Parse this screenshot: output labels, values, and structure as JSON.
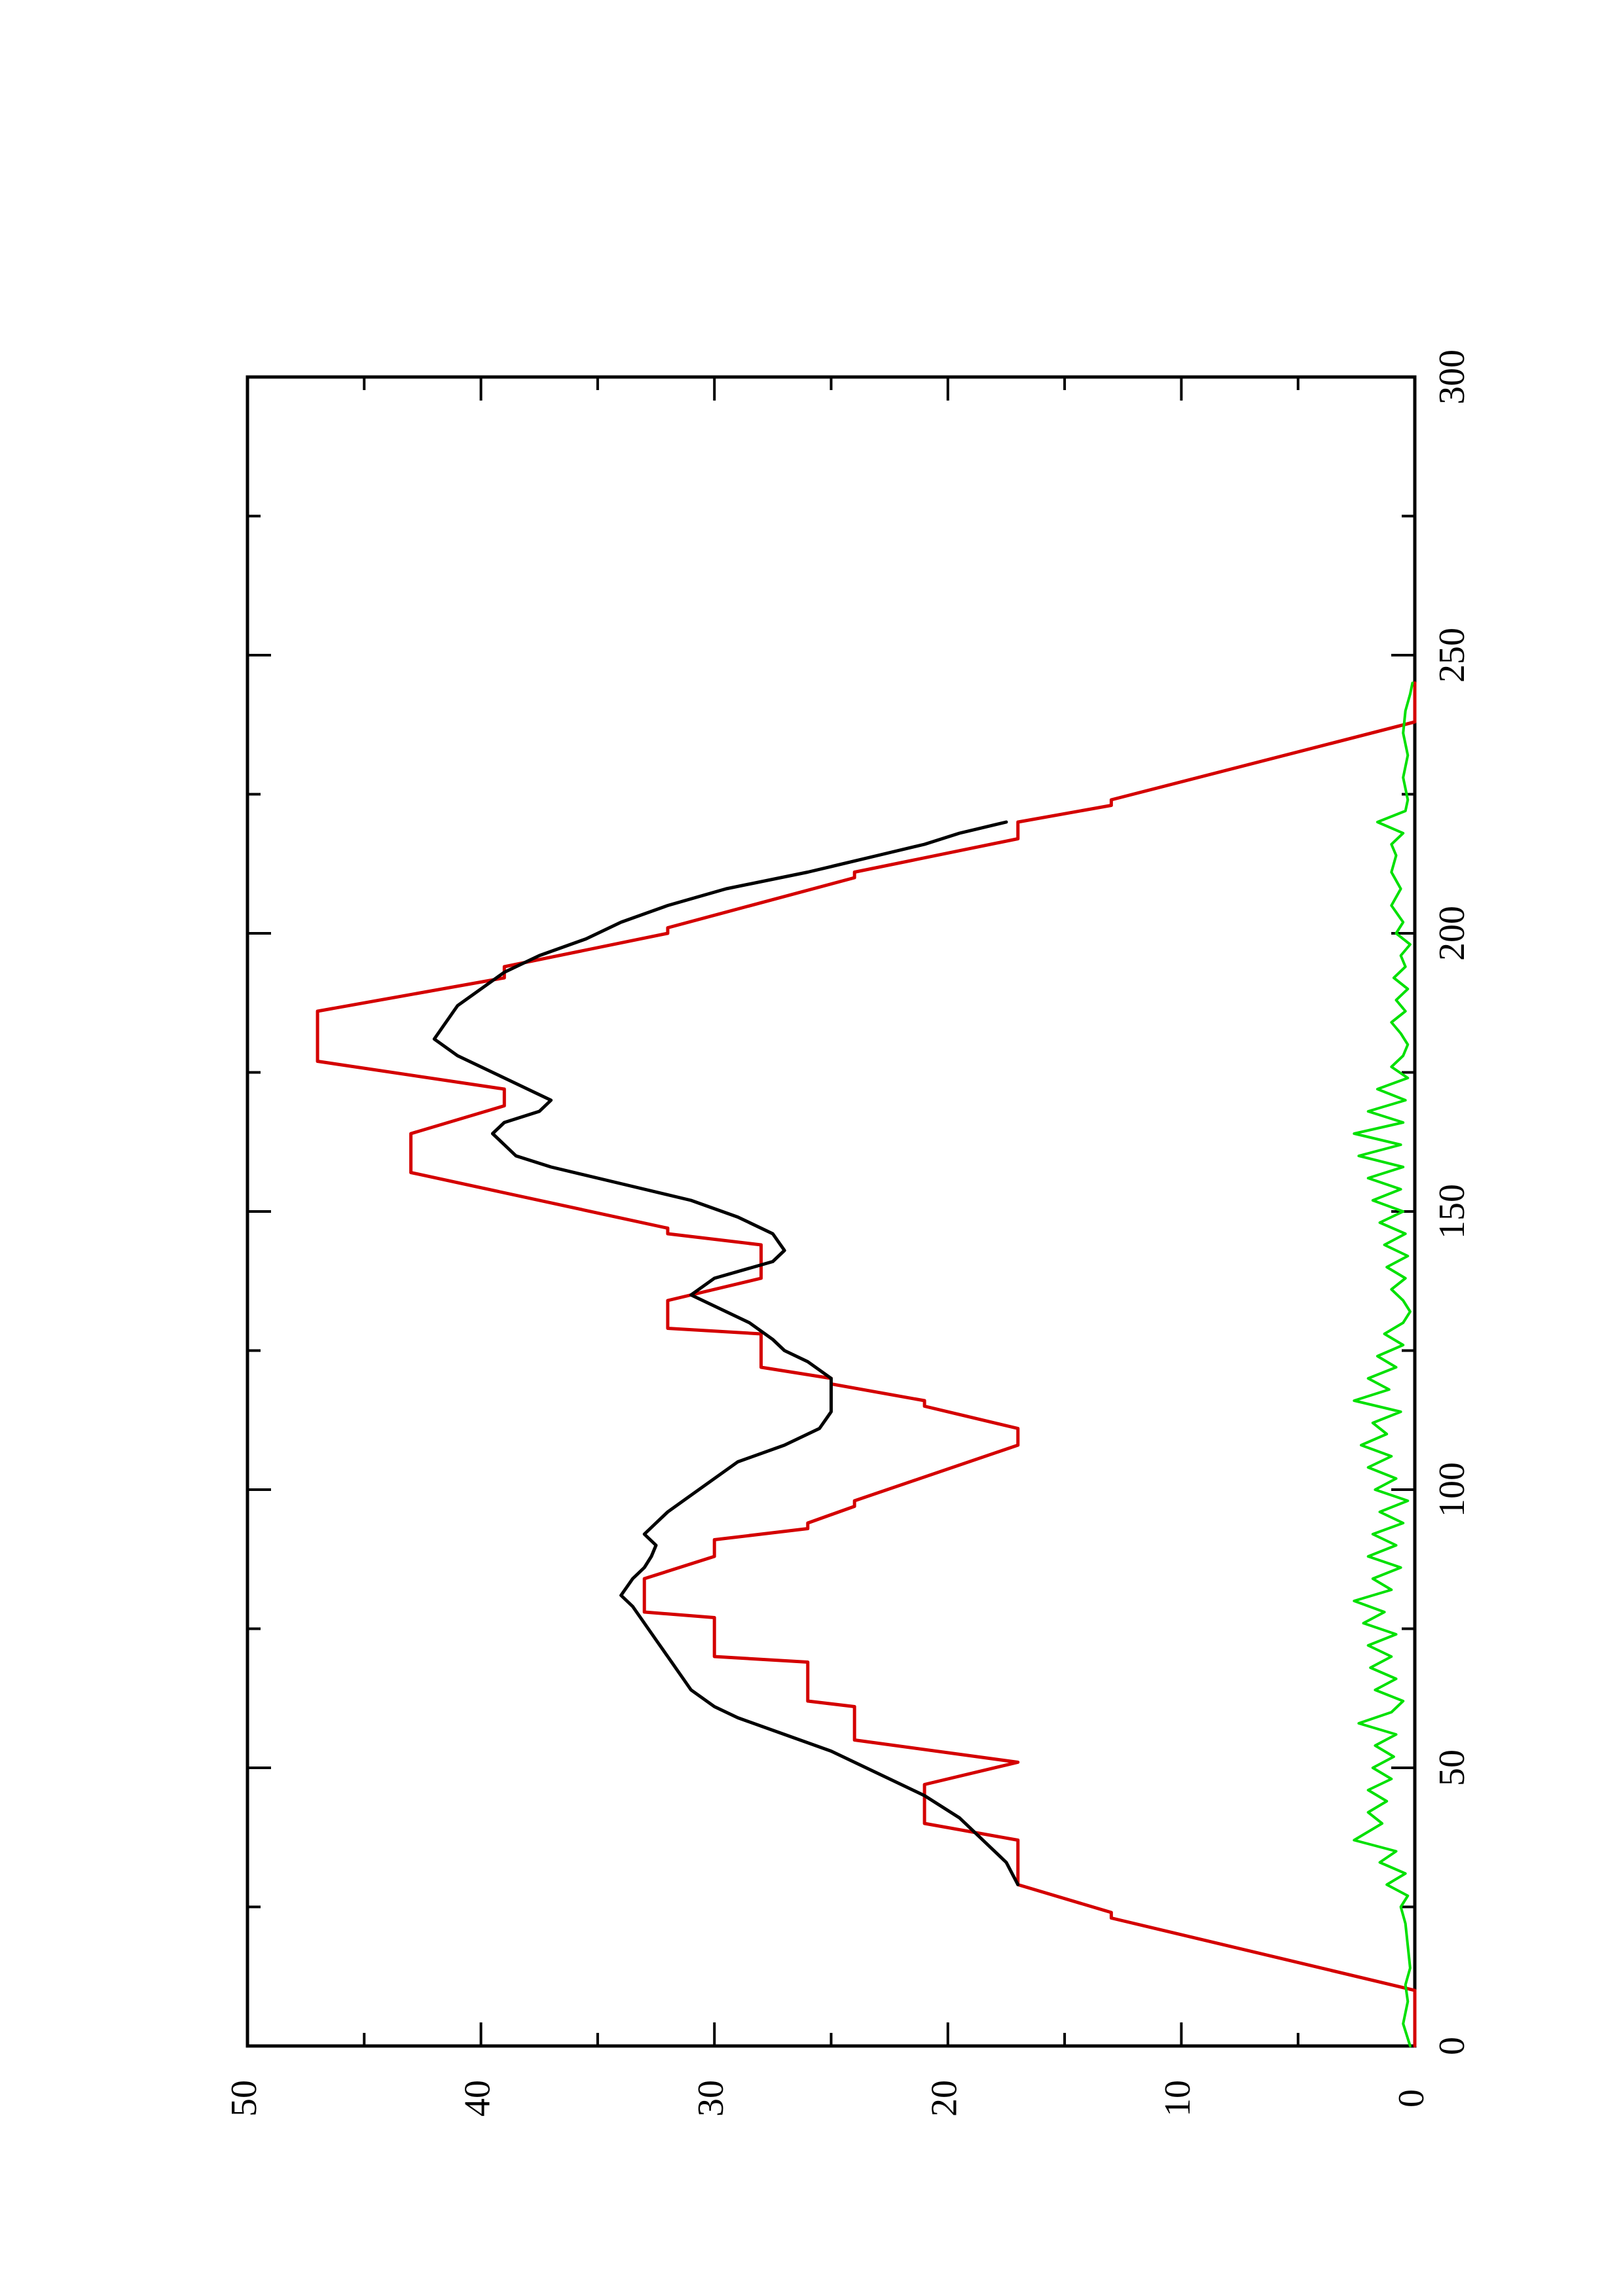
{
  "chart_data": {
    "type": "line",
    "title": "",
    "xlabel": "",
    "ylabel": "",
    "orientation": "rotated-90-counterclockwise",
    "xlim": [
      0,
      300
    ],
    "ylim": [
      0,
      50
    ],
    "x_ticks": [
      0,
      50,
      100,
      150,
      200,
      250,
      300
    ],
    "x_minor_ticks": [
      25,
      75,
      125,
      175,
      225,
      275
    ],
    "y_ticks": [
      0,
      10,
      20,
      30,
      40,
      50
    ],
    "y_minor_ticks": [
      5,
      15,
      25,
      35,
      45
    ],
    "grid": false,
    "legend": "none",
    "series": [
      {
        "color": "#d40000",
        "style": "step",
        "points": [
          [
            0,
            0
          ],
          [
            10,
            0
          ],
          [
            23,
            13
          ],
          [
            24,
            13
          ],
          [
            29,
            17
          ],
          [
            37,
            17
          ],
          [
            40,
            21
          ],
          [
            47,
            21
          ],
          [
            51,
            17
          ],
          [
            55,
            24
          ],
          [
            61,
            24
          ],
          [
            62,
            26
          ],
          [
            69,
            26
          ],
          [
            70,
            30
          ],
          [
            77,
            30
          ],
          [
            78,
            33
          ],
          [
            84,
            33
          ],
          [
            88,
            30
          ],
          [
            91,
            30
          ],
          [
            93,
            26
          ],
          [
            94,
            26
          ],
          [
            97,
            24
          ],
          [
            98,
            24
          ],
          [
            108,
            17
          ],
          [
            111,
            17
          ],
          [
            115,
            21
          ],
          [
            116,
            21
          ],
          [
            119,
            25
          ],
          [
            120,
            25
          ],
          [
            122,
            28
          ],
          [
            128,
            28
          ],
          [
            129,
            32
          ],
          [
            134,
            32
          ],
          [
            138,
            28
          ],
          [
            144,
            28
          ],
          [
            146,
            32
          ],
          [
            147,
            32
          ],
          [
            157,
            43
          ],
          [
            164,
            43
          ],
          [
            169,
            39
          ],
          [
            172,
            39
          ],
          [
            177,
            47
          ],
          [
            186,
            47
          ],
          [
            192,
            39
          ],
          [
            194,
            39
          ],
          [
            200,
            32
          ],
          [
            201,
            32
          ],
          [
            210,
            24
          ],
          [
            211,
            24
          ],
          [
            217,
            17
          ],
          [
            220,
            17
          ],
          [
            223,
            13
          ],
          [
            224,
            13
          ],
          [
            238,
            0
          ],
          [
            245,
            0
          ]
        ]
      },
      {
        "color": "#000000",
        "style": "smooth",
        "points": [
          [
            29,
            17
          ],
          [
            33,
            17.5
          ],
          [
            37,
            18.5
          ],
          [
            41,
            19.5
          ],
          [
            45,
            21
          ],
          [
            48,
            22.5
          ],
          [
            50,
            23.5
          ],
          [
            53,
            25
          ],
          [
            56,
            27
          ],
          [
            59,
            29
          ],
          [
            61,
            30
          ],
          [
            64,
            31
          ],
          [
            67,
            31.5
          ],
          [
            70,
            32
          ],
          [
            73,
            32.5
          ],
          [
            76,
            33
          ],
          [
            79,
            33.5
          ],
          [
            81,
            34
          ],
          [
            84,
            33.5
          ],
          [
            86,
            33
          ],
          [
            88,
            32.7
          ],
          [
            90,
            32.5
          ],
          [
            92,
            33
          ],
          [
            94,
            32.5
          ],
          [
            96,
            32
          ],
          [
            99,
            31
          ],
          [
            102,
            30
          ],
          [
            105,
            29
          ],
          [
            108,
            27
          ],
          [
            111,
            25.5
          ],
          [
            114,
            25
          ],
          [
            117,
            25
          ],
          [
            120,
            25
          ],
          [
            123,
            26
          ],
          [
            125,
            27
          ],
          [
            127,
            27.5
          ],
          [
            130,
            28.5
          ],
          [
            133,
            30
          ],
          [
            135,
            31
          ],
          [
            138,
            30
          ],
          [
            141,
            27.5
          ],
          [
            143,
            27
          ],
          [
            146,
            27.5
          ],
          [
            149,
            29
          ],
          [
            152,
            31
          ],
          [
            155,
            34
          ],
          [
            158,
            37
          ],
          [
            160,
            38.5
          ],
          [
            162,
            39
          ],
          [
            164,
            39.5
          ],
          [
            166,
            39
          ],
          [
            168,
            37.5
          ],
          [
            170,
            37
          ],
          [
            172,
            38
          ],
          [
            174,
            39
          ],
          [
            176,
            40
          ],
          [
            178,
            41
          ],
          [
            181,
            42
          ],
          [
            184,
            41.5
          ],
          [
            187,
            41
          ],
          [
            190,
            40
          ],
          [
            193,
            39
          ],
          [
            196,
            37.5
          ],
          [
            199,
            35.5
          ],
          [
            202,
            34
          ],
          [
            205,
            32
          ],
          [
            208,
            29.5
          ],
          [
            211,
            26
          ],
          [
            214,
            23
          ],
          [
            216,
            21
          ],
          [
            218,
            19.5
          ],
          [
            220,
            17.5
          ]
        ]
      },
      {
        "color": "#00e000",
        "style": "noisy",
        "points": [
          [
            0,
            0.2
          ],
          [
            4,
            0.5
          ],
          [
            8,
            0.3
          ],
          [
            11,
            0.4
          ],
          [
            14,
            0.2
          ],
          [
            18,
            0.3
          ],
          [
            22,
            0.4
          ],
          [
            25,
            0.6
          ],
          [
            27,
            0.3
          ],
          [
            29,
            1.2
          ],
          [
            31,
            0.4
          ],
          [
            33,
            1.5
          ],
          [
            35,
            0.8
          ],
          [
            37,
            2.6
          ],
          [
            38,
            2.2
          ],
          [
            40,
            1.4
          ],
          [
            42,
            2.0
          ],
          [
            44,
            1.2
          ],
          [
            46,
            2.0
          ],
          [
            48,
            1.0
          ],
          [
            50,
            1.8
          ],
          [
            52,
            0.9
          ],
          [
            54,
            1.7
          ],
          [
            56,
            0.8
          ],
          [
            58,
            2.4
          ],
          [
            60,
            1.0
          ],
          [
            62,
            0.5
          ],
          [
            64,
            1.7
          ],
          [
            66,
            0.8
          ],
          [
            68,
            1.9
          ],
          [
            70,
            1.0
          ],
          [
            72,
            2.0
          ],
          [
            74,
            0.8
          ],
          [
            76,
            2.2
          ],
          [
            78,
            1.3
          ],
          [
            80,
            2.6
          ],
          [
            82,
            1.0
          ],
          [
            84,
            1.8
          ],
          [
            86,
            0.6
          ],
          [
            88,
            2.0
          ],
          [
            90,
            0.8
          ],
          [
            92,
            1.8
          ],
          [
            94,
            0.5
          ],
          [
            96,
            1.5
          ],
          [
            98,
            0.3
          ],
          [
            100,
            1.7
          ],
          [
            102,
            0.8
          ],
          [
            104,
            2.0
          ],
          [
            106,
            1.0
          ],
          [
            108,
            2.3
          ],
          [
            110,
            1.2
          ],
          [
            112,
            1.8
          ],
          [
            114,
            0.6
          ],
          [
            116,
            2.6
          ],
          [
            118,
            1.1
          ],
          [
            120,
            2.0
          ],
          [
            122,
            0.8
          ],
          [
            124,
            1.6
          ],
          [
            126,
            0.5
          ],
          [
            128,
            1.3
          ],
          [
            130,
            0.5
          ],
          [
            132,
            0.2
          ],
          [
            134,
            0.5
          ],
          [
            136,
            1.0
          ],
          [
            138,
            0.4
          ],
          [
            140,
            1.2
          ],
          [
            142,
            0.3
          ],
          [
            144,
            1.3
          ],
          [
            146,
            0.4
          ],
          [
            148,
            1.5
          ],
          [
            150,
            0.5
          ],
          [
            152,
            1.8
          ],
          [
            154,
            0.6
          ],
          [
            156,
            2.0
          ],
          [
            158,
            0.5
          ],
          [
            160,
            2.4
          ],
          [
            162,
            0.6
          ],
          [
            164,
            2.6
          ],
          [
            166,
            0.5
          ],
          [
            168,
            2.0
          ],
          [
            170,
            0.4
          ],
          [
            172,
            1.6
          ],
          [
            174,
            0.3
          ],
          [
            176,
            1.0
          ],
          [
            178,
            0.5
          ],
          [
            180,
            0.3
          ],
          [
            182,
            0.6
          ],
          [
            184,
            1.0
          ],
          [
            186,
            0.4
          ],
          [
            188,
            0.8
          ],
          [
            190,
            0.3
          ],
          [
            192,
            0.9
          ],
          [
            194,
            0.4
          ],
          [
            196,
            0.6
          ],
          [
            198,
            0.2
          ],
          [
            200,
            0.8
          ],
          [
            202,
            0.5
          ],
          [
            205,
            1.0
          ],
          [
            208,
            0.6
          ],
          [
            211,
            1.0
          ],
          [
            214,
            0.8
          ],
          [
            216,
            1.0
          ],
          [
            218,
            0.5
          ],
          [
            220,
            1.6
          ],
          [
            222,
            0.4
          ],
          [
            224,
            0.3
          ],
          [
            228,
            0.5
          ],
          [
            232,
            0.3
          ],
          [
            236,
            0.5
          ],
          [
            240,
            0.4
          ],
          [
            243,
            0.2
          ],
          [
            245,
            0.1
          ]
        ]
      }
    ]
  }
}
